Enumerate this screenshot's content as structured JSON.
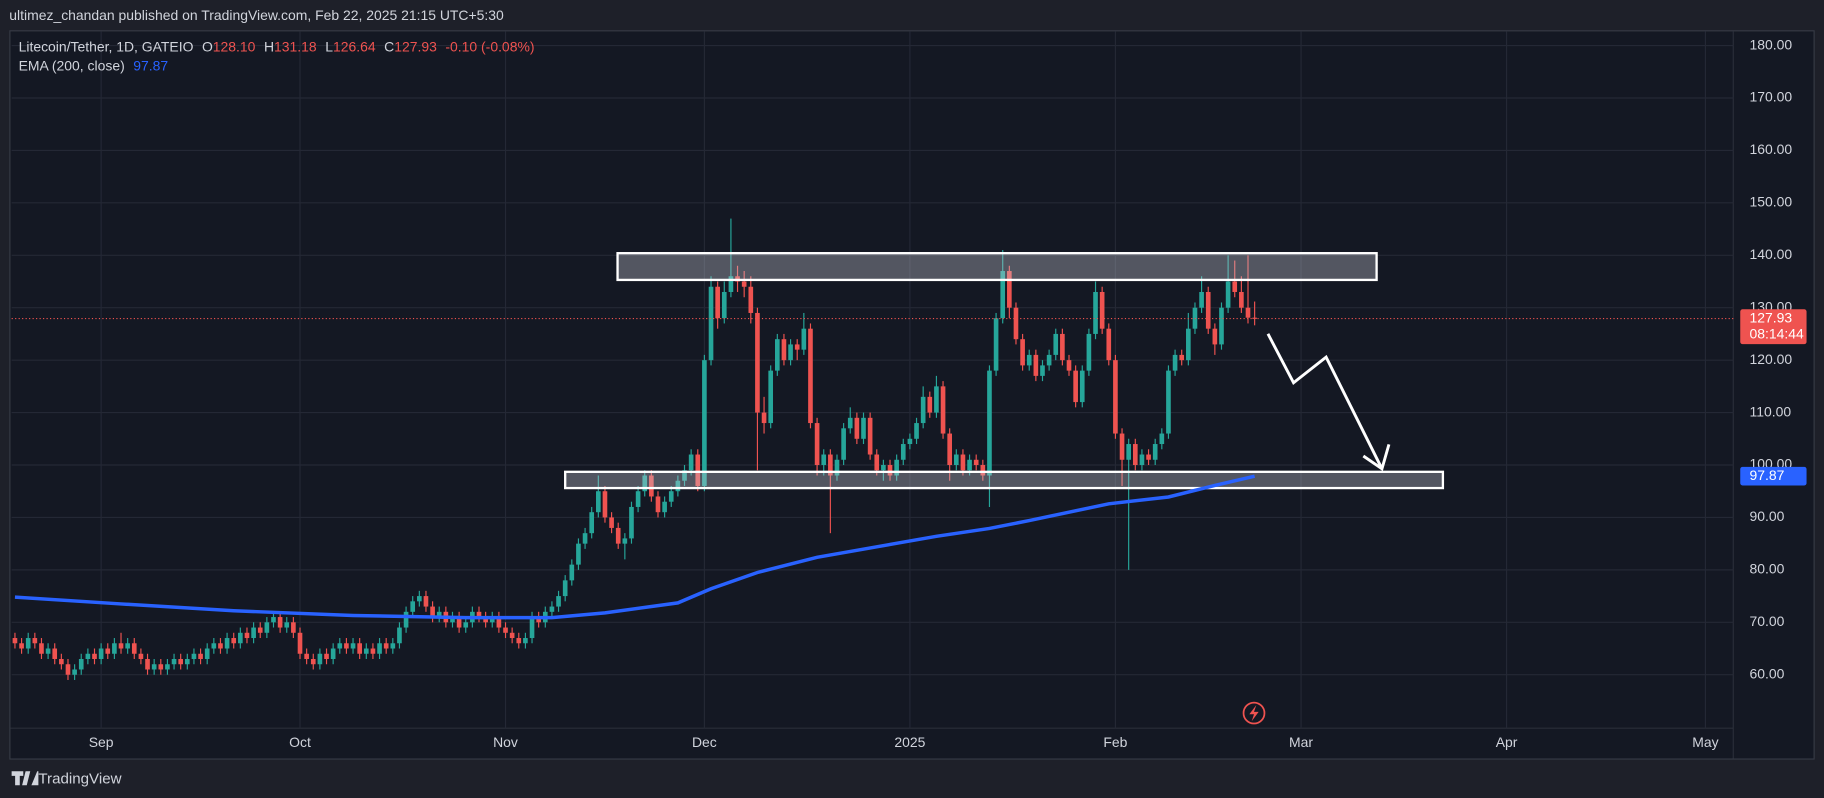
{
  "header": {
    "text": "ultimez_chandan published on TradingView.com, Feb 22, 2025 21:15 UTC+5:30"
  },
  "footer": {
    "brand": "TradingView"
  },
  "chart_data": {
    "type": "candlestick",
    "legend": {
      "symbol": "Litecoin/Tether, 1D, GATEIO",
      "keys": [
        "O",
        "H",
        "L",
        "C"
      ],
      "values": [
        "128.10",
        "131.18",
        "126.64",
        "127.93"
      ],
      "change": "-0.10 (-0.08%)",
      "indicator": "EMA (200, close)"
    },
    "countdown": "08:14:44",
    "up_color": "#26a69a",
    "down_color": "#ef5350",
    "ema_color": "#2962ff",
    "grid": true,
    "ylim": [
      49.8,
      182.7
    ],
    "yticks": [
      {
        "value": 60,
        "label": "60.00"
      },
      {
        "value": 70,
        "label": "70.00"
      },
      {
        "value": 80,
        "label": "80.00"
      },
      {
        "value": 90,
        "label": "90.00"
      },
      {
        "value": 100,
        "label": "100.00"
      },
      {
        "value": 110,
        "label": "110.00"
      },
      {
        "value": 120,
        "label": "120.00"
      },
      {
        "value": 130,
        "label": "130.00"
      },
      {
        "value": 140,
        "label": "140.00"
      },
      {
        "value": 150,
        "label": "150.00"
      },
      {
        "value": 160,
        "label": "160.00"
      },
      {
        "value": 170,
        "label": "170.00"
      },
      {
        "value": 180,
        "label": "180.00"
      }
    ],
    "xlim": [
      -0.5,
      259.2
    ],
    "xticks": [
      {
        "value": 13,
        "label": "Sep"
      },
      {
        "value": 43,
        "label": "Oct"
      },
      {
        "value": 74,
        "label": "Nov"
      },
      {
        "value": 104,
        "label": "Dec"
      },
      {
        "value": 135,
        "label": "2025"
      },
      {
        "value": 166,
        "label": "Feb"
      },
      {
        "value": 194,
        "label": "Mar"
      },
      {
        "value": 225,
        "label": "Apr"
      },
      {
        "value": 255,
        "label": "May"
      }
    ],
    "candles": [
      [
        67,
        68,
        65,
        66
      ],
      [
        66,
        67,
        64,
        65
      ],
      [
        65,
        68,
        64,
        67
      ],
      [
        67,
        68,
        65,
        66
      ],
      [
        66,
        67,
        63,
        64
      ],
      [
        64,
        66,
        63,
        65
      ],
      [
        65,
        66,
        62,
        63
      ],
      [
        63,
        64,
        61,
        62
      ],
      [
        62,
        63,
        59,
        60
      ],
      [
        60,
        62,
        59,
        61
      ],
      [
        61,
        64,
        60,
        63
      ],
      [
        63,
        65,
        62,
        64
      ],
      [
        64,
        65,
        62,
        63
      ],
      [
        63,
        66,
        62,
        65
      ],
      [
        65,
        66,
        63,
        64
      ],
      [
        64,
        67,
        63,
        66
      ],
      [
        66,
        68,
        64,
        65
      ],
      [
        65,
        67,
        64,
        66
      ],
      [
        66,
        67,
        63,
        64
      ],
      [
        64,
        65,
        62,
        63
      ],
      [
        63,
        64,
        60,
        61
      ],
      [
        61,
        63,
        60,
        62
      ],
      [
        62,
        63,
        60,
        61
      ],
      [
        61,
        63,
        60,
        62
      ],
      [
        62,
        64,
        61,
        63
      ],
      [
        63,
        64,
        61,
        62
      ],
      [
        62,
        64,
        61,
        63
      ],
      [
        63,
        65,
        62,
        64
      ],
      [
        64,
        65,
        62,
        63
      ],
      [
        63,
        66,
        62,
        65
      ],
      [
        65,
        67,
        64,
        66
      ],
      [
        66,
        67,
        64,
        65
      ],
      [
        65,
        68,
        64,
        67
      ],
      [
        67,
        68,
        65,
        66
      ],
      [
        66,
        69,
        65,
        68
      ],
      [
        68,
        69,
        66,
        67
      ],
      [
        67,
        70,
        66,
        69
      ],
      [
        69,
        70,
        67,
        68
      ],
      [
        68,
        71,
        67,
        70
      ],
      [
        70,
        72,
        69,
        71
      ],
      [
        71,
        72,
        68,
        69
      ],
      [
        69,
        71,
        68,
        70
      ],
      [
        70,
        71,
        67,
        68
      ],
      [
        68,
        69,
        63,
        64
      ],
      [
        64,
        65,
        62,
        63
      ],
      [
        63,
        64,
        61,
        62
      ],
      [
        62,
        65,
        61,
        64
      ],
      [
        64,
        65,
        62,
        63
      ],
      [
        63,
        66,
        62,
        65
      ],
      [
        65,
        67,
        64,
        66
      ],
      [
        66,
        67,
        64,
        65
      ],
      [
        65,
        67,
        64,
        66
      ],
      [
        66,
        67,
        63,
        64
      ],
      [
        64,
        66,
        63,
        65
      ],
      [
        65,
        66,
        63,
        64
      ],
      [
        64,
        67,
        63,
        66
      ],
      [
        66,
        67,
        64,
        65
      ],
      [
        65,
        67,
        64,
        66
      ],
      [
        66,
        70,
        65,
        69
      ],
      [
        69,
        73,
        68,
        72
      ],
      [
        72,
        75,
        71,
        74
      ],
      [
        74,
        76,
        73,
        75
      ],
      [
        75,
        76,
        72,
        73
      ],
      [
        73,
        74,
        70,
        71
      ],
      [
        71,
        73,
        70,
        72
      ],
      [
        72,
        73,
        69,
        70
      ],
      [
        70,
        72,
        69,
        71
      ],
      [
        71,
        72,
        68,
        69
      ],
      [
        69,
        71,
        68,
        70
      ],
      [
        70,
        73,
        69,
        72
      ],
      [
        72,
        73,
        70,
        71
      ],
      [
        71,
        72,
        69,
        70
      ],
      [
        70,
        72,
        69,
        71
      ],
      [
        71,
        72,
        68,
        69
      ],
      [
        69,
        70,
        67,
        68
      ],
      [
        68,
        69,
        66,
        67
      ],
      [
        67,
        68,
        65,
        66
      ],
      [
        66,
        68,
        65,
        67
      ],
      [
        67,
        72,
        66,
        71
      ],
      [
        71,
        72,
        69,
        70
      ],
      [
        70,
        73,
        69,
        72
      ],
      [
        72,
        74,
        71,
        73
      ],
      [
        73,
        76,
        72,
        75
      ],
      [
        75,
        79,
        74,
        78
      ],
      [
        78,
        82,
        77,
        81
      ],
      [
        81,
        86,
        80,
        85
      ],
      [
        85,
        88,
        84,
        87
      ],
      [
        87,
        92,
        86,
        91
      ],
      [
        91,
        98,
        90,
        95
      ],
      [
        95,
        96,
        89,
        90
      ],
      [
        90,
        91,
        87,
        88
      ],
      [
        88,
        89,
        84,
        85
      ],
      [
        85,
        87,
        82,
        86
      ],
      [
        86,
        93,
        85,
        92
      ],
      [
        92,
        96,
        91,
        95
      ],
      [
        95,
        99,
        94,
        98
      ],
      [
        98,
        99,
        93,
        94
      ],
      [
        94,
        95,
        90,
        91
      ],
      [
        91,
        94,
        90,
        93
      ],
      [
        93,
        96,
        92,
        95
      ],
      [
        95,
        98,
        94,
        97
      ],
      [
        97,
        100,
        96,
        99
      ],
      [
        99,
        103,
        98,
        102
      ],
      [
        102,
        103,
        95,
        96
      ],
      [
        96,
        121,
        95,
        120
      ],
      [
        120,
        136,
        119,
        134
      ],
      [
        134,
        135,
        126,
        128
      ],
      [
        128,
        135,
        127,
        133
      ],
      [
        133,
        147,
        132,
        136
      ],
      [
        136,
        138,
        133,
        135
      ],
      [
        135,
        137,
        132,
        134
      ],
      [
        134,
        136,
        127,
        129
      ],
      [
        129,
        130,
        99,
        110
      ],
      [
        110,
        113,
        106,
        108
      ],
      [
        108,
        119,
        107,
        118
      ],
      [
        118,
        125,
        117,
        124
      ],
      [
        124,
        125,
        119,
        120
      ],
      [
        120,
        124,
        119,
        123
      ],
      [
        123,
        124,
        120,
        122
      ],
      [
        122,
        129,
        121,
        126
      ],
      [
        126,
        127,
        107,
        108
      ],
      [
        108,
        109,
        98,
        100
      ],
      [
        100,
        103,
        98,
        102
      ],
      [
        102,
        103,
        87,
        98
      ],
      [
        98,
        102,
        97,
        101
      ],
      [
        101,
        108,
        100,
        107
      ],
      [
        107,
        111,
        106,
        109
      ],
      [
        109,
        110,
        104,
        105
      ],
      [
        105,
        110,
        104,
        109
      ],
      [
        109,
        110,
        101,
        102
      ],
      [
        102,
        103,
        98,
        99
      ],
      [
        99,
        101,
        97,
        100
      ],
      [
        100,
        101,
        97,
        98
      ],
      [
        98,
        102,
        97,
        101
      ],
      [
        101,
        105,
        100,
        104
      ],
      [
        104,
        106,
        103,
        105
      ],
      [
        105,
        109,
        104,
        108
      ],
      [
        108,
        115,
        107,
        113
      ],
      [
        113,
        114,
        109,
        110
      ],
      [
        110,
        117,
        109,
        115
      ],
      [
        115,
        116,
        105,
        106
      ],
      [
        106,
        107,
        97,
        100
      ],
      [
        100,
        103,
        99,
        102
      ],
      [
        102,
        103,
        98,
        99
      ],
      [
        99,
        102,
        98,
        101
      ],
      [
        101,
        102,
        99,
        100
      ],
      [
        100,
        101,
        97,
        98
      ],
      [
        98,
        119,
        92,
        118
      ],
      [
        118,
        129,
        117,
        128
      ],
      [
        128,
        141,
        127,
        137
      ],
      [
        137,
        138,
        128,
        130
      ],
      [
        130,
        131,
        123,
        124
      ],
      [
        124,
        125,
        118,
        119
      ],
      [
        119,
        122,
        118,
        121
      ],
      [
        121,
        122,
        116,
        117
      ],
      [
        117,
        120,
        116,
        119
      ],
      [
        119,
        122,
        118,
        121
      ],
      [
        121,
        126,
        120,
        125
      ],
      [
        125,
        126,
        119,
        120
      ],
      [
        120,
        121,
        117,
        118
      ],
      [
        118,
        119,
        111,
        112
      ],
      [
        112,
        119,
        111,
        118
      ],
      [
        118,
        126,
        117,
        125
      ],
      [
        125,
        135,
        124,
        133
      ],
      [
        133,
        134,
        125,
        126
      ],
      [
        126,
        127,
        119,
        120
      ],
      [
        120,
        121,
        105,
        106
      ],
      [
        106,
        107,
        96,
        101
      ],
      [
        101,
        105,
        80,
        104
      ],
      [
        104,
        105,
        99,
        100
      ],
      [
        100,
        103,
        99,
        102
      ],
      [
        102,
        103,
        100,
        101
      ],
      [
        101,
        105,
        100,
        104
      ],
      [
        104,
        107,
        103,
        106
      ],
      [
        106,
        119,
        105,
        118
      ],
      [
        118,
        122,
        117,
        121
      ],
      [
        121,
        122,
        119,
        120
      ],
      [
        120,
        129,
        119,
        126
      ],
      [
        126,
        131,
        125,
        130
      ],
      [
        130,
        136,
        129,
        133
      ],
      [
        133,
        134,
        125,
        126
      ],
      [
        126,
        127,
        121,
        123
      ],
      [
        123,
        131,
        122,
        130
      ],
      [
        130,
        140,
        129,
        135
      ],
      [
        135,
        139,
        132,
        133
      ],
      [
        133,
        136,
        129,
        130
      ],
      [
        130,
        140,
        127,
        128.1
      ],
      [
        128.1,
        131.18,
        126.64,
        127.93
      ]
    ],
    "ema": {
      "x": [
        0,
        16,
        33,
        51,
        68,
        81,
        89,
        100,
        105,
        112,
        121,
        130,
        139,
        147,
        153,
        165,
        174,
        181,
        187
      ],
      "values": [
        74.8,
        73.5,
        72.2,
        71.3,
        70.9,
        70.9,
        71.8,
        73.7,
        76.4,
        79.5,
        82.4,
        84.4,
        86.4,
        87.9,
        89.4,
        92.6,
        93.9,
        96.1,
        97.87
      ]
    },
    "zones": [
      {
        "x": [
          90.9,
          205.4
        ],
        "y": [
          135.3,
          140.4
        ]
      },
      {
        "x": [
          83,
          215.4
        ],
        "y": [
          95.6,
          98.7
        ]
      }
    ]
  }
}
